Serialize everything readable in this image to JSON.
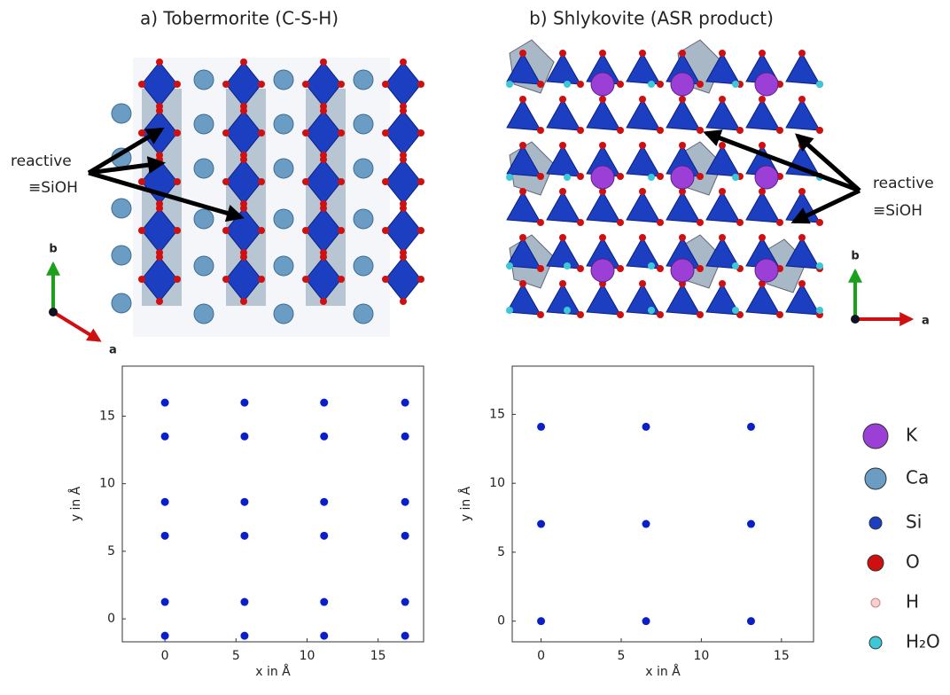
{
  "panels": [
    {
      "title": "a)  Tobermorite (C-S-H)",
      "annotation": [
        "reactive",
        "≡SiOH"
      ],
      "axis_b": "b",
      "axis_a": "a"
    },
    {
      "title": "b)  Shlykovite (ASR product)",
      "annotation": [
        "reactive",
        "≡SiOH"
      ],
      "axis_b": "b",
      "axis_a": "a"
    }
  ],
  "chart_data": [
    {
      "type": "scatter",
      "xlabel": "x in Å",
      "ylabel": "y in Å",
      "color": "#0a1fc8",
      "x": [
        0,
        5.6,
        11.2,
        16.9,
        0,
        5.6,
        11.2,
        16.9,
        0,
        5.6,
        11.2,
        16.9,
        0,
        5.6,
        11.2,
        16.9,
        0,
        5.6,
        11.2,
        16.9,
        0,
        5.6,
        11.2,
        16.9
      ],
      "y": [
        16,
        16,
        16,
        16,
        13.5,
        13.5,
        13.5,
        13.5,
        8.65,
        8.65,
        8.65,
        8.65,
        6.15,
        6.15,
        6.15,
        6.15,
        1.25,
        1.25,
        1.25,
        1.25,
        -1.25,
        -1.25,
        -1.25,
        -1.25
      ],
      "xlim": [
        -3,
        18.2
      ],
      "ylim": [
        -1.7,
        18.7
      ],
      "xticks": [
        0,
        5,
        10,
        15
      ],
      "yticks": [
        0,
        5,
        10,
        15
      ]
    },
    {
      "type": "scatter",
      "xlabel": "x in Å",
      "ylabel": "y in Å",
      "color": "#0a1fc8",
      "x": [
        0,
        6.55,
        13.1,
        0,
        6.55,
        13.1,
        0,
        6.55,
        13.1
      ],
      "y": [
        14.1,
        14.1,
        14.1,
        7.05,
        7.05,
        7.05,
        0,
        0,
        0
      ],
      "xlim": [
        -1.8,
        17
      ],
      "ylim": [
        -1.5,
        18.5
      ],
      "xticks": [
        0,
        5,
        10,
        15
      ],
      "yticks": [
        0,
        5,
        10,
        15
      ]
    }
  ],
  "legend": [
    {
      "label": "K",
      "color": "#9b3fd6"
    },
    {
      "label": "Ca",
      "color": "#6b9cc4"
    },
    {
      "label": "Si",
      "color": "#1b3fc0"
    },
    {
      "label": "O",
      "color": "#d01010"
    },
    {
      "label": "H",
      "color": "#f4d0d0"
    },
    {
      "label": "H₂O",
      "color": "#3cc8d8"
    }
  ]
}
